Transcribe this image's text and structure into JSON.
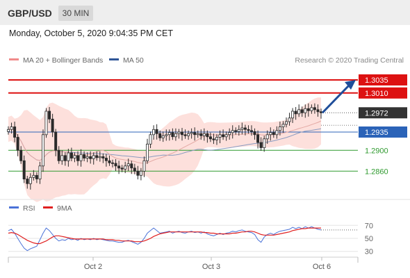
{
  "header": {
    "symbol": "GBP/USD",
    "timeframe": "30 MIN",
    "datetime": "Monday, October 5, 2020 9:04:35 PM CET"
  },
  "chart_data": [
    {
      "type": "candlestick",
      "title": "GBP/USD",
      "legend": [
        {
          "label": "MA 20 + Bollinger Bands",
          "color": "#f08a8a"
        },
        {
          "label": "MA 50",
          "color": "#2f5597"
        }
      ],
      "credit": "Research © 2020 Trading Central",
      "x_tick_labels": [
        "Oct 2",
        "Oct 3",
        "Oct 6"
      ],
      "y_range": [
        1.2815,
        1.3055
      ],
      "levels": [
        {
          "label": "1.3035",
          "value": 1.3035,
          "kind": "resistance",
          "color": "#dd1111"
        },
        {
          "label": "1.3010",
          "value": 1.301,
          "kind": "resistance",
          "color": "#dd1111"
        },
        {
          "label": "1.2972",
          "value": 1.2972,
          "kind": "last",
          "color": "#333333"
        },
        {
          "label": "1.2935",
          "value": 1.2935,
          "kind": "pivot",
          "color": "#2b63b8"
        },
        {
          "label": "1.2900",
          "value": 1.29,
          "kind": "support",
          "color": "#2e9a2e"
        },
        {
          "label": "1.2860",
          "value": 1.286,
          "kind": "support",
          "color": "#2e9a2e"
        }
      ],
      "target_arrow": {
        "from": 1.2972,
        "to": 1.3035,
        "color": "#1f4e9a"
      },
      "close": [
        1.294,
        1.2945,
        1.2925,
        1.29,
        1.288,
        1.2845,
        1.2836,
        1.2848,
        1.2852,
        1.2845,
        1.287,
        1.293,
        1.2975,
        1.296,
        1.2935,
        1.29,
        1.288,
        1.289,
        1.288,
        1.2895,
        1.2885,
        1.289,
        1.288,
        1.2892,
        1.2885,
        1.2888,
        1.2884,
        1.289,
        1.2886,
        1.2888,
        1.2885,
        1.288,
        1.2876,
        1.2875,
        1.287,
        1.2866,
        1.2864,
        1.287,
        1.2874,
        1.2866,
        1.286,
        1.2852,
        1.286,
        1.288,
        1.2912,
        1.293,
        1.294,
        1.2932,
        1.2924,
        1.2928,
        1.293,
        1.2934,
        1.2926,
        1.2932,
        1.2935,
        1.293,
        1.2928,
        1.2932,
        1.2934,
        1.293,
        1.2932,
        1.2928,
        1.2932,
        1.2926,
        1.2922,
        1.292,
        1.2925,
        1.293,
        1.2926,
        1.293,
        1.2934,
        1.2938,
        1.2936,
        1.294,
        1.2943,
        1.294,
        1.2938,
        1.2936,
        1.293,
        1.2915,
        1.2905,
        1.2922,
        1.293,
        1.2934,
        1.293,
        1.2938,
        1.2945,
        1.295,
        1.2955,
        1.2962,
        1.2975,
        1.297,
        1.2978,
        1.2972,
        1.298,
        1.2976,
        1.2982,
        1.2978,
        1.2974,
        1.2972
      ],
      "series_label": "GBP/USD 30 MIN"
    },
    {
      "type": "line",
      "legend": [
        {
          "label": "RSI",
          "color": "#4a72d8"
        },
        {
          "label": "9MA",
          "color": "#e02020"
        }
      ],
      "y_range": [
        20,
        80
      ],
      "y_ticks": [
        70,
        50,
        30
      ],
      "rsi": [
        62,
        64,
        58,
        50,
        42,
        35,
        31,
        34,
        36,
        38,
        48,
        58,
        66,
        62,
        56,
        50,
        46,
        48,
        47,
        50,
        48,
        49,
        47,
        50,
        48,
        49,
        48,
        50,
        48,
        49,
        48,
        47,
        46,
        46,
        45,
        44,
        44,
        46,
        47,
        45,
        43,
        41,
        44,
        50,
        58,
        62,
        66,
        62,
        58,
        59,
        60,
        61,
        58,
        60,
        61,
        59,
        58,
        60,
        61,
        59,
        60,
        58,
        60,
        57,
        55,
        54,
        56,
        58,
        56,
        58,
        59,
        61,
        60,
        62,
        63,
        61,
        60,
        59,
        56,
        48,
        44,
        52,
        56,
        58,
        56,
        59,
        61,
        62,
        63,
        64,
        67,
        65,
        67,
        65,
        68,
        66,
        68,
        66,
        64,
        63
      ],
      "ma9": [
        58,
        59,
        58,
        56,
        53,
        50,
        47,
        45,
        43,
        42,
        42,
        44,
        46,
        49,
        52,
        54,
        54,
        53,
        52,
        51,
        50,
        49,
        49,
        49,
        49,
        49,
        49,
        49,
        49,
        49,
        49,
        48,
        48,
        48,
        47,
        47,
        46,
        46,
        46,
        46,
        45,
        45,
        45,
        46,
        48,
        50,
        53,
        55,
        57,
        58,
        59,
        60,
        60,
        60,
        60,
        60,
        60,
        60,
        60,
        60,
        60,
        60,
        59,
        59,
        58,
        58,
        57,
        57,
        57,
        57,
        57,
        58,
        58,
        59,
        60,
        60,
        61,
        61,
        60,
        58,
        56,
        55,
        55,
        55,
        55,
        56,
        57,
        58,
        59,
        60,
        62,
        63,
        64,
        65,
        65,
        66,
        66,
        66,
        66,
        66
      ]
    }
  ]
}
